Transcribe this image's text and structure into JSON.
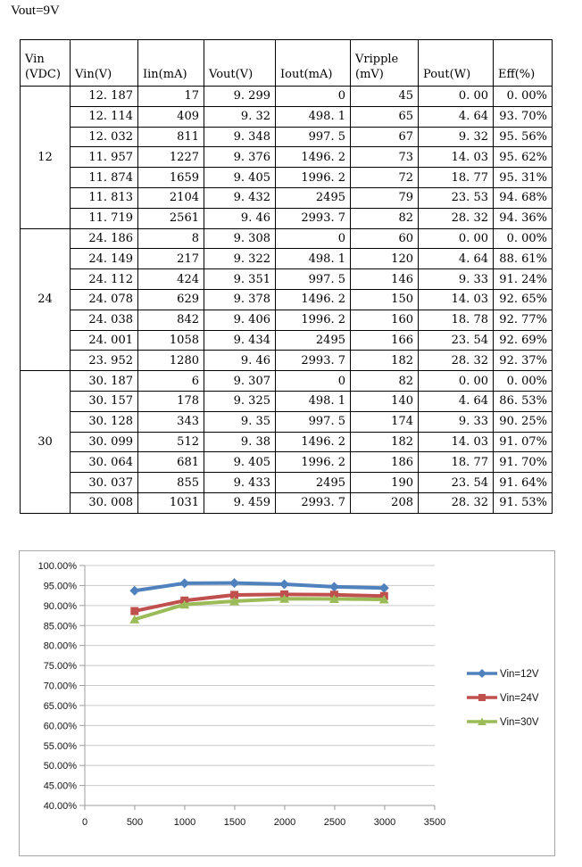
{
  "page": {
    "title": "Vout=9V"
  },
  "table": {
    "headers": [
      {
        "key": "vin-vdc",
        "lines": [
          "Vin",
          "(VDC)"
        ]
      },
      {
        "key": "vin-v",
        "lines": [
          "Vin(V)"
        ]
      },
      {
        "key": "iin-ma",
        "lines": [
          "Iin(mA)"
        ]
      },
      {
        "key": "vout-v",
        "lines": [
          "Vout(V)"
        ]
      },
      {
        "key": "iout-ma",
        "lines": [
          "Iout(mA)"
        ]
      },
      {
        "key": "vripple-mv",
        "lines": [
          "Vripple",
          "(mV)"
        ]
      },
      {
        "key": "pout-w",
        "lines": [
          "Pout(W)"
        ]
      },
      {
        "key": "eff-pct",
        "lines": [
          "Eff(%)"
        ]
      }
    ],
    "col_keys": [
      "vin-v",
      "iin-ma",
      "vout-v",
      "iout-ma",
      "vripple-mv",
      "pout-w",
      "eff-pct"
    ],
    "groups": [
      {
        "label": "12",
        "rows": [
          [
            "12. 187",
            "17",
            "9. 299",
            "0",
            "45",
            "0. 00",
            "0. 00%"
          ],
          [
            "12. 114",
            "409",
            "9. 32",
            "498. 1",
            "65",
            "4. 64",
            "93. 70%"
          ],
          [
            "12. 032",
            "811",
            "9. 348",
            "997. 5",
            "67",
            "9. 32",
            "95. 56%"
          ],
          [
            "11. 957",
            "1227",
            "9. 376",
            "1496. 2",
            "73",
            "14. 03",
            "95. 62%"
          ],
          [
            "11. 874",
            "1659",
            "9. 405",
            "1996. 2",
            "72",
            "18. 77",
            "95. 31%"
          ],
          [
            "11. 813",
            "2104",
            "9. 432",
            "2495",
            "79",
            "23. 53",
            "94. 68%"
          ],
          [
            "11. 719",
            "2561",
            "9. 46",
            "2993. 7",
            "82",
            "28. 32",
            "94. 36%"
          ]
        ]
      },
      {
        "label": "24",
        "rows": [
          [
            "24. 186",
            "8",
            "9. 308",
            "0",
            "60",
            "0. 00",
            "0. 00%"
          ],
          [
            "24. 149",
            "217",
            "9. 322",
            "498. 1",
            "120",
            "4. 64",
            "88. 61%"
          ],
          [
            "24. 112",
            "424",
            "9. 351",
            "997. 5",
            "146",
            "9. 33",
            "91. 24%"
          ],
          [
            "24. 078",
            "629",
            "9. 378",
            "1496. 2",
            "150",
            "14. 03",
            "92. 65%"
          ],
          [
            "24. 038",
            "842",
            "9. 406",
            "1996. 2",
            "160",
            "18. 78",
            "92. 77%"
          ],
          [
            "24. 001",
            "1058",
            "9. 434",
            "2495",
            "166",
            "23. 54",
            "92. 69%"
          ],
          [
            "23. 952",
            "1280",
            "9. 46",
            "2993. 7",
            "182",
            "28. 32",
            "92. 37%"
          ]
        ]
      },
      {
        "label": "30",
        "rows": [
          [
            "30. 187",
            "6",
            "9. 307",
            "0",
            "82",
            "0. 00",
            "0. 00%"
          ],
          [
            "30. 157",
            "178",
            "9. 325",
            "498. 1",
            "140",
            "4. 64",
            "86. 53%"
          ],
          [
            "30. 128",
            "343",
            "9. 35",
            "997. 5",
            "174",
            "9. 33",
            "90. 25%"
          ],
          [
            "30. 099",
            "512",
            "9. 38",
            "1496. 2",
            "182",
            "14. 03",
            "91. 07%"
          ],
          [
            "30. 064",
            "681",
            "9. 405",
            "1996. 2",
            "186",
            "18. 77",
            "91. 70%"
          ],
          [
            "30. 037",
            "855",
            "9. 433",
            "2495",
            "190",
            "23. 54",
            "91. 64%"
          ],
          [
            "30. 008",
            "1031",
            "9. 459",
            "2993. 7",
            "208",
            "28. 32",
            "91. 53%"
          ]
        ]
      }
    ]
  },
  "chart_data": {
    "type": "line",
    "title": "",
    "xlabel": "",
    "ylabel": "",
    "x": [
      498.1,
      997.5,
      1496.2,
      1996.2,
      2495,
      2993.7
    ],
    "series": [
      {
        "name": "Vin=12V",
        "color": "#4F81BD",
        "marker": "diamond",
        "values": [
          93.7,
          95.56,
          95.62,
          95.31,
          94.68,
          94.36
        ]
      },
      {
        "name": "Vin=24V",
        "color": "#C0504D",
        "marker": "square",
        "values": [
          88.61,
          91.24,
          92.65,
          92.77,
          92.69,
          92.37
        ]
      },
      {
        "name": "Vin=30V",
        "color": "#9BBB59",
        "marker": "triangle",
        "values": [
          86.53,
          90.25,
          91.07,
          91.7,
          91.64,
          91.53
        ]
      }
    ],
    "xlim": [
      0,
      3500
    ],
    "ylim": [
      40,
      100
    ],
    "x_ticks": [
      "0",
      "500",
      "1000",
      "1500",
      "2000",
      "2500",
      "3000",
      "3500"
    ],
    "y_ticks": [
      "100.00%",
      "95.00%",
      "90.00%",
      "85.00%",
      "80.00%",
      "75.00%",
      "70.00%",
      "65.00%",
      "60.00%",
      "55.00%",
      "50.00%",
      "45.00%",
      "40.00%"
    ],
    "grid": "horizontal",
    "legend_position": "right",
    "axis_color": "#9e9e9e",
    "gridline_color": "#c9c9c9"
  }
}
